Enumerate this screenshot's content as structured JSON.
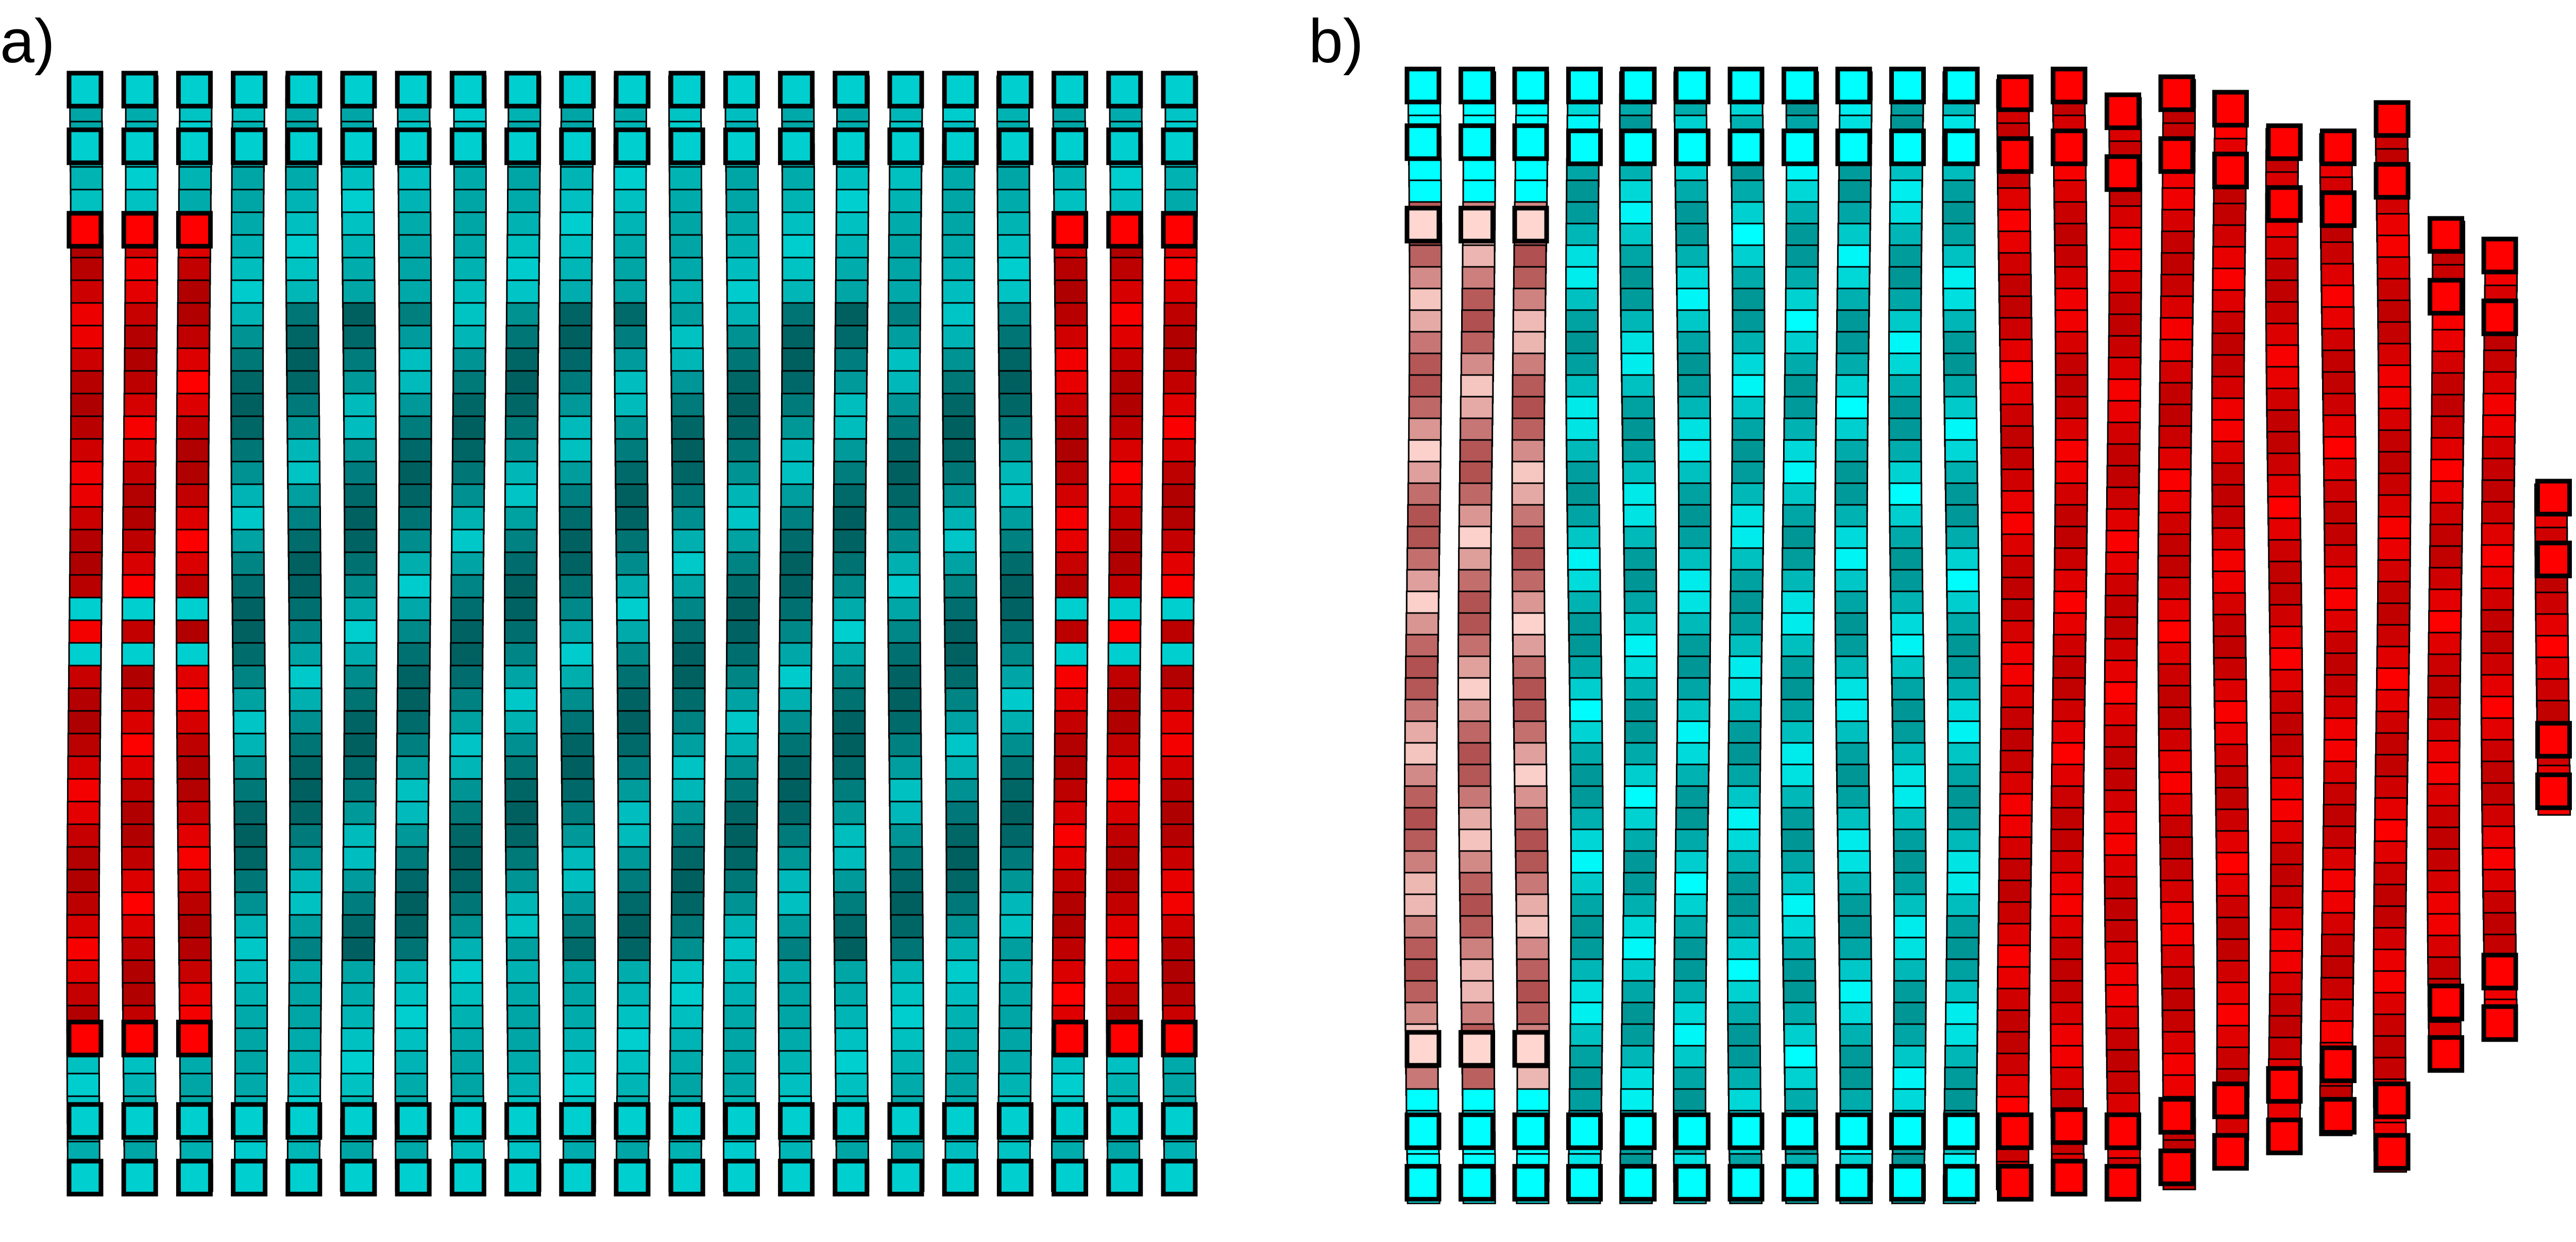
{
  "panels": [
    {
      "label": "a)",
      "colors": {
        "cyan_bright": "#00cfd0",
        "cyan_mid": "#00a5a5",
        "cyan_dark": "#006060",
        "red_bright": "#ff0000",
        "red_dark": "#9b0000",
        "outline": "#000000"
      }
    },
    {
      "label": "b)",
      "colors": {
        "cyan_bright": "#00ffff",
        "cyan_mid": "#00b8b8",
        "cyan_dark": "#008a8a",
        "red_bright": "#ff0000",
        "red_dark": "#b00000",
        "pink_light": "#ffd6d0",
        "pink_mid": "#f08080",
        "pink_dark": "#b05050",
        "outline": "#000000"
      }
    }
  ]
}
